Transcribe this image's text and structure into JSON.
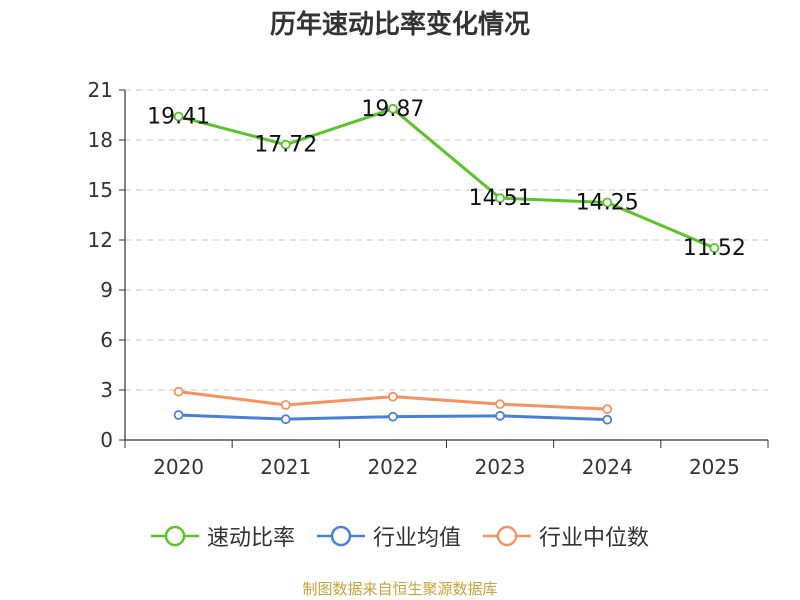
{
  "title": "历年速动比率变化情况",
  "source": "制图数据来自恒生聚源数据库",
  "colors": {
    "series1": "#5cc22a",
    "series2": "#4a7fd8",
    "series3": "#f79260",
    "grid": "#c8c8c8",
    "axis": "#333333",
    "source": "#c8a23a"
  },
  "chart_data": {
    "type": "line",
    "title": "历年速动比率变化情况",
    "categories": [
      "2020",
      "2021",
      "2022",
      "2023",
      "2024",
      "2025"
    ],
    "ylim": [
      0,
      21
    ],
    "yticks": [
      0,
      3,
      6,
      9,
      12,
      15,
      18,
      21
    ],
    "ytick_labels": [
      "0",
      "3",
      "6",
      "9",
      "12",
      "15",
      "18",
      "21"
    ],
    "grid": true,
    "legend_position": "bottom",
    "series": [
      {
        "name": "速动比率",
        "values": [
          19.41,
          17.72,
          19.87,
          14.51,
          14.25,
          11.52
        ],
        "labels": [
          "19.41",
          "17.72",
          "19.87",
          "14.51",
          "14.25",
          "11.52"
        ]
      },
      {
        "name": "行业均值",
        "values": [
          1.5,
          1.25,
          1.4,
          1.45,
          1.22,
          null
        ]
      },
      {
        "name": "行业中位数",
        "values": [
          2.9,
          2.1,
          2.6,
          2.15,
          1.85,
          null
        ]
      }
    ]
  }
}
